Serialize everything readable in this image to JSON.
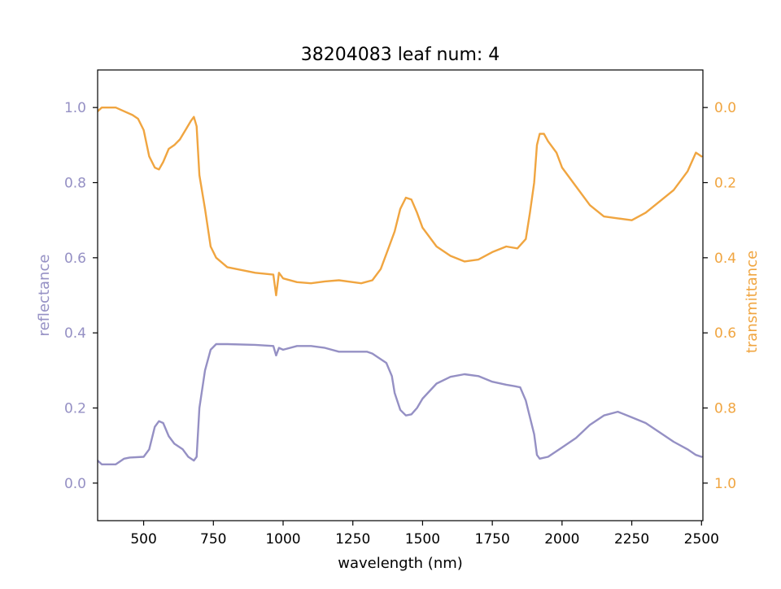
{
  "chart_data": {
    "type": "line",
    "title": "38204083 leaf num: 4",
    "xlabel": "wavelength (nm)",
    "ylabel_left": "reflectance",
    "ylabel_right": "transmittance",
    "xlim": [
      335,
      2505
    ],
    "ylim_left": [
      -0.1,
      1.1
    ],
    "ylim_right": [
      1.1,
      -0.1
    ],
    "right_axis_inverted": true,
    "x_ticks": [
      500,
      750,
      1000,
      1250,
      1500,
      1750,
      2000,
      2250,
      2500
    ],
    "x_tick_labels": [
      "500",
      "750",
      "1000",
      "1250",
      "1500",
      "1750",
      "2000",
      "2250",
      "2500"
    ],
    "y_ticks_left": [
      0.0,
      0.2,
      0.4,
      0.6,
      0.8,
      1.0
    ],
    "y_tick_labels_left": [
      "0.0",
      "0.2",
      "0.4",
      "0.6",
      "0.8",
      "1.0"
    ],
    "y_ticks_right": [
      0.0,
      0.2,
      0.4,
      0.6,
      0.8,
      1.0
    ],
    "y_tick_labels_right": [
      "0.0",
      "0.2",
      "0.4",
      "0.6",
      "0.8",
      "1.0"
    ],
    "grid": false,
    "colors": {
      "reflectance": "#9590c4",
      "transmittance": "#f0a540",
      "axes": "#000000"
    },
    "series": [
      {
        "name": "reflectance",
        "axis": "left",
        "x": [
          335,
          350,
          380,
          400,
          430,
          450,
          500,
          520,
          540,
          555,
          570,
          590,
          610,
          640,
          660,
          680,
          690,
          700,
          720,
          740,
          760,
          800,
          900,
          965,
          975,
          985,
          1000,
          1050,
          1100,
          1150,
          1200,
          1250,
          1300,
          1320,
          1340,
          1370,
          1390,
          1400,
          1420,
          1440,
          1460,
          1480,
          1500,
          1550,
          1600,
          1650,
          1700,
          1750,
          1800,
          1830,
          1850,
          1870,
          1880,
          1900,
          1910,
          1920,
          1950,
          2000,
          2050,
          2100,
          2150,
          2200,
          2250,
          2300,
          2350,
          2400,
          2450,
          2480,
          2500
        ],
        "y": [
          0.06,
          0.05,
          0.05,
          0.05,
          0.065,
          0.068,
          0.07,
          0.09,
          0.15,
          0.165,
          0.16,
          0.125,
          0.105,
          0.09,
          0.07,
          0.06,
          0.07,
          0.2,
          0.3,
          0.355,
          0.37,
          0.37,
          0.368,
          0.365,
          0.34,
          0.36,
          0.355,
          0.365,
          0.365,
          0.36,
          0.35,
          0.35,
          0.35,
          0.345,
          0.335,
          0.32,
          0.285,
          0.24,
          0.195,
          0.18,
          0.183,
          0.2,
          0.225,
          0.265,
          0.283,
          0.29,
          0.285,
          0.27,
          0.262,
          0.258,
          0.255,
          0.22,
          0.19,
          0.13,
          0.075,
          0.065,
          0.07,
          0.095,
          0.12,
          0.155,
          0.18,
          0.19,
          0.175,
          0.16,
          0.135,
          0.11,
          0.09,
          0.075,
          0.07
        ]
      },
      {
        "name": "transmittance",
        "axis": "right",
        "x": [
          335,
          350,
          370,
          400,
          430,
          460,
          480,
          500,
          520,
          540,
          555,
          570,
          590,
          610,
          630,
          650,
          670,
          680,
          690,
          700,
          720,
          740,
          760,
          800,
          900,
          965,
          975,
          985,
          1000,
          1050,
          1100,
          1150,
          1200,
          1250,
          1280,
          1320,
          1350,
          1380,
          1400,
          1420,
          1440,
          1460,
          1480,
          1500,
          1550,
          1600,
          1650,
          1700,
          1750,
          1800,
          1840,
          1870,
          1885,
          1900,
          1910,
          1920,
          1935,
          1950,
          1980,
          2000,
          2050,
          2100,
          2150,
          2200,
          2250,
          2300,
          2350,
          2400,
          2450,
          2480,
          2500
        ],
        "y": [
          0.01,
          0.0,
          0.0,
          0.0,
          0.01,
          0.02,
          0.03,
          0.06,
          0.13,
          0.16,
          0.165,
          0.145,
          0.11,
          0.1,
          0.085,
          0.06,
          0.035,
          0.025,
          0.05,
          0.18,
          0.27,
          0.37,
          0.4,
          0.425,
          0.44,
          0.445,
          0.5,
          0.44,
          0.455,
          0.465,
          0.468,
          0.463,
          0.46,
          0.465,
          0.468,
          0.46,
          0.43,
          0.37,
          0.33,
          0.27,
          0.24,
          0.245,
          0.28,
          0.32,
          0.37,
          0.395,
          0.41,
          0.405,
          0.385,
          0.37,
          0.375,
          0.35,
          0.28,
          0.2,
          0.1,
          0.07,
          0.07,
          0.09,
          0.12,
          0.16,
          0.21,
          0.26,
          0.29,
          0.295,
          0.3,
          0.28,
          0.25,
          0.22,
          0.17,
          0.12,
          0.13
        ]
      }
    ]
  }
}
